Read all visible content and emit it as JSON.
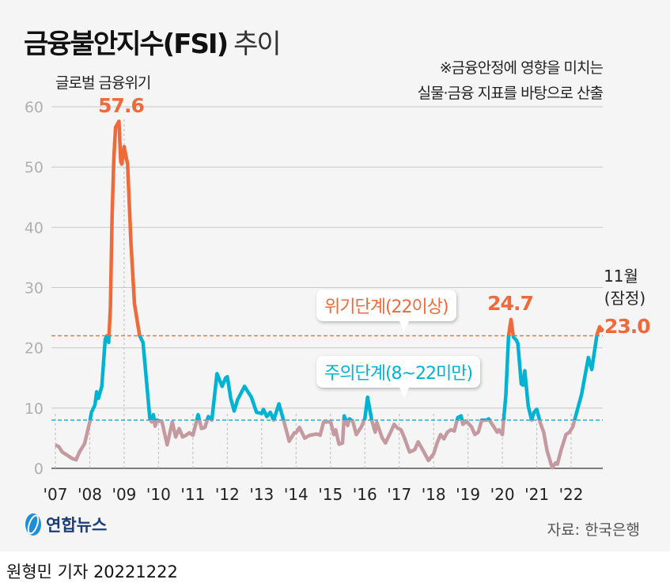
{
  "header": {
    "title": "금융불안지수(FSI)",
    "title_suffix": "추이",
    "note_line1": "※금융안정에 영향을 미치는",
    "note_line2": "실물·금융 지표를 바탕으로 산출"
  },
  "footer": {
    "logo_text": "연합뉴스",
    "source": "자료: 한국은행",
    "byline": "원형민 기자  20221222"
  },
  "colors": {
    "crisis": "#ef6a3a",
    "caution": "#00b3d2",
    "normal": "#c49aa0",
    "background": "#f5f5f5"
  },
  "chart_data": {
    "type": "line",
    "title": "금융불안지수(FSI) 추이",
    "xlabel": "",
    "ylabel": "",
    "ylim": [
      0,
      60
    ],
    "yticks": [
      0,
      10,
      20,
      30,
      40,
      50,
      60
    ],
    "xticks": [
      "'07",
      "'08",
      "'09",
      "'10",
      "'11",
      "'12",
      "'13",
      "'14",
      "'15",
      "'16",
      "'17",
      "'18",
      "'19",
      "'20",
      "'21",
      "'22"
    ],
    "grid": true,
    "thresholds": [
      {
        "label": "위기단계(22이상)",
        "value": 22
      },
      {
        "label": "주의단계(8~22미만)",
        "value": 8
      }
    ],
    "annotations": [
      {
        "text": "글로벌 금융위기"
      },
      {
        "text": "57.6",
        "x": 2008.85,
        "y": 57.6
      },
      {
        "text": "24.7",
        "x": 2020.25,
        "y": 24.7
      },
      {
        "text": "11월",
        "x": 2022.87
      },
      {
        "text": "(잠정)",
        "x": 2022.87
      },
      {
        "text": "23.0",
        "x": 2022.87,
        "y": 23.0
      }
    ],
    "series": [
      {
        "points": [
          [
            2007.0,
            3.9
          ],
          [
            2007.1,
            3.6
          ],
          [
            2007.2,
            2.7
          ],
          [
            2007.5,
            1.6
          ],
          [
            2007.6,
            1.4
          ],
          [
            2007.7,
            2.7
          ],
          [
            2007.85,
            4.1
          ],
          [
            2008.0,
            7.7
          ],
          [
            2008.05,
            9.3
          ],
          [
            2008.15,
            10.5
          ],
          [
            2008.2,
            12.7
          ],
          [
            2008.25,
            11.6
          ],
          [
            2008.35,
            13.6
          ],
          [
            2008.45,
            21.4
          ],
          [
            2008.5,
            22
          ],
          [
            2008.55,
            20.9
          ],
          [
            2008.6,
            26.8
          ],
          [
            2008.65,
            41.8
          ],
          [
            2008.7,
            51.4
          ],
          [
            2008.75,
            56.6
          ],
          [
            2008.85,
            57.6
          ],
          [
            2008.9,
            50.9
          ],
          [
            2008.93,
            50.5
          ],
          [
            2009.0,
            53.4
          ],
          [
            2009.1,
            50.5
          ],
          [
            2009.2,
            37.3
          ],
          [
            2009.3,
            27.3
          ],
          [
            2009.45,
            22
          ],
          [
            2009.55,
            20.9
          ],
          [
            2009.75,
            8.2
          ],
          [
            2009.8,
            7.7
          ],
          [
            2009.85,
            8.9
          ],
          [
            2009.9,
            7.0
          ],
          [
            2009.95,
            8.0
          ],
          [
            2010.1,
            7.7
          ],
          [
            2010.25,
            3.9
          ],
          [
            2010.4,
            7.7
          ],
          [
            2010.5,
            5.2
          ],
          [
            2010.6,
            6.6
          ],
          [
            2010.7,
            5.2
          ],
          [
            2010.8,
            5.5
          ],
          [
            2010.9,
            5.9
          ],
          [
            2011.0,
            5.5
          ],
          [
            2011.1,
            7.7
          ],
          [
            2011.15,
            8.9
          ],
          [
            2011.25,
            6.6
          ],
          [
            2011.35,
            6.8
          ],
          [
            2011.45,
            8.6
          ],
          [
            2011.55,
            8.0
          ],
          [
            2011.7,
            15.7
          ],
          [
            2011.85,
            13.6
          ],
          [
            2011.95,
            15.0
          ],
          [
            2012.0,
            15.2
          ],
          [
            2012.1,
            11.6
          ],
          [
            2012.2,
            9.5
          ],
          [
            2012.3,
            11.4
          ],
          [
            2012.5,
            13.6
          ],
          [
            2012.7,
            11.8
          ],
          [
            2012.85,
            9.3
          ],
          [
            2013.0,
            9.1
          ],
          [
            2013.05,
            9.8
          ],
          [
            2013.15,
            8.6
          ],
          [
            2013.25,
            9.3
          ],
          [
            2013.35,
            8.0
          ],
          [
            2013.5,
            10.7
          ],
          [
            2013.65,
            7.7
          ],
          [
            2013.8,
            4.5
          ],
          [
            2013.95,
            5.9
          ],
          [
            2014.0,
            5.9
          ],
          [
            2014.1,
            6.8
          ],
          [
            2014.25,
            5.0
          ],
          [
            2014.4,
            5.5
          ],
          [
            2014.6,
            5.7
          ],
          [
            2014.7,
            5.5
          ],
          [
            2014.8,
            7.7
          ],
          [
            2014.95,
            7.7
          ],
          [
            2015.0,
            7.8
          ],
          [
            2015.1,
            5.6
          ],
          [
            2015.15,
            6.4
          ],
          [
            2015.25,
            4.0
          ],
          [
            2015.35,
            4.2
          ],
          [
            2015.4,
            8.7
          ],
          [
            2015.5,
            7.1
          ],
          [
            2015.55,
            8.2
          ],
          [
            2015.65,
            7.8
          ],
          [
            2015.75,
            5.6
          ],
          [
            2015.9,
            6.9
          ],
          [
            2016.0,
            8.2
          ],
          [
            2016.08,
            11.8
          ],
          [
            2016.2,
            8.0
          ],
          [
            2016.3,
            6.0
          ],
          [
            2016.35,
            7.6
          ],
          [
            2016.5,
            5.1
          ],
          [
            2016.6,
            4.2
          ],
          [
            2016.75,
            6.0
          ],
          [
            2016.85,
            7.3
          ],
          [
            2016.95,
            6.7
          ],
          [
            2017.05,
            6.4
          ],
          [
            2017.15,
            5.1
          ],
          [
            2017.3,
            2.7
          ],
          [
            2017.45,
            3.1
          ],
          [
            2017.55,
            4.4
          ],
          [
            2017.7,
            2.9
          ],
          [
            2017.85,
            1.3
          ],
          [
            2018.0,
            2.4
          ],
          [
            2018.1,
            4.2
          ],
          [
            2018.2,
            5.6
          ],
          [
            2018.3,
            4.9
          ],
          [
            2018.4,
            6.0
          ],
          [
            2018.5,
            6.4
          ],
          [
            2018.6,
            6.2
          ],
          [
            2018.7,
            8.4
          ],
          [
            2018.8,
            8.7
          ],
          [
            2018.85,
            7.3
          ],
          [
            2018.95,
            7.8
          ],
          [
            2019.1,
            6.9
          ],
          [
            2019.2,
            5.6
          ],
          [
            2019.3,
            6.0
          ],
          [
            2019.4,
            8.0
          ],
          [
            2019.55,
            8.0
          ],
          [
            2019.6,
            8.2
          ],
          [
            2019.75,
            6.9
          ],
          [
            2019.85,
            6.0
          ],
          [
            2019.9,
            6.4
          ],
          [
            2020.0,
            5.6
          ],
          [
            2020.1,
            12.2
          ],
          [
            2020.18,
            22.0
          ],
          [
            2020.25,
            24.7
          ],
          [
            2020.32,
            21.8
          ],
          [
            2020.4,
            21.3
          ],
          [
            2020.45,
            20.7
          ],
          [
            2020.55,
            14.0
          ],
          [
            2020.6,
            13.8
          ],
          [
            2020.65,
            16.2
          ],
          [
            2020.75,
            10.4
          ],
          [
            2020.85,
            8.0
          ],
          [
            2020.92,
            9.3
          ],
          [
            2021.0,
            9.8
          ],
          [
            2021.1,
            7.6
          ],
          [
            2021.2,
            6.0
          ],
          [
            2021.3,
            2.9
          ],
          [
            2021.45,
            0.1
          ],
          [
            2021.55,
            0.9
          ],
          [
            2021.6,
            0.7
          ],
          [
            2021.7,
            2.9
          ],
          [
            2021.85,
            5.6
          ],
          [
            2021.95,
            6.0
          ],
          [
            2022.05,
            6.9
          ],
          [
            2022.15,
            9.1
          ],
          [
            2022.3,
            12.2
          ],
          [
            2022.5,
            18.4
          ],
          [
            2022.6,
            16.4
          ],
          [
            2022.75,
            22.2
          ],
          [
            2022.83,
            23.5
          ],
          [
            2022.87,
            23.0
          ]
        ]
      }
    ]
  }
}
